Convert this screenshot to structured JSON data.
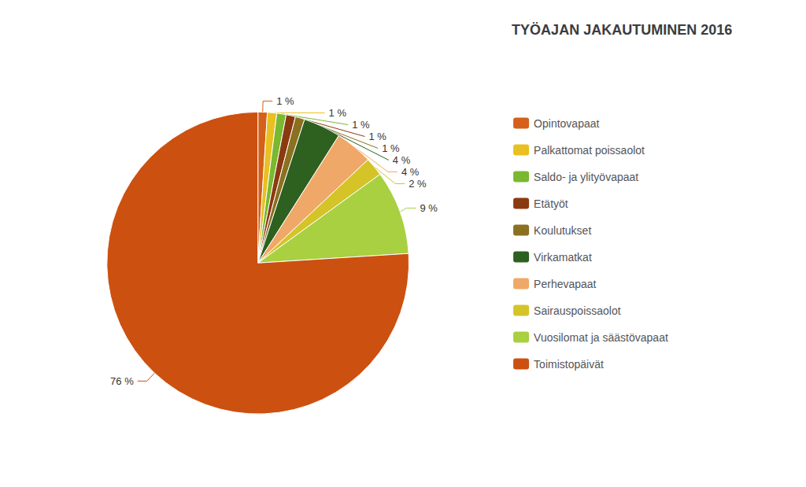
{
  "chart_data": {
    "type": "pie",
    "title": "TYÖAJAN JAKAUTUMINEN 2016",
    "categories": [
      "Opintovapaat",
      "Palkattomat poissaolot",
      "Saldo- ja ylityövapaat",
      "Etätyöt",
      "Koulutukset",
      "Virkamatkat",
      "Perhevapaat",
      "Sairauspoissaolot",
      "Vuosilomat ja säästövapaat",
      "Toimistopäivät"
    ],
    "values": [
      1,
      1,
      1,
      1,
      1,
      4,
      4,
      2,
      9,
      76
    ],
    "value_labels": [
      "1 %",
      "1 %",
      "1 %",
      "1 %",
      "1 %",
      "4 %",
      "4 %",
      "2 %",
      "9 %",
      "76 %"
    ],
    "colors": [
      "#D4601A",
      "#E8C020",
      "#7AB830",
      "#8B3A10",
      "#8B7020",
      "#2E6020",
      "#F0A868",
      "#D4C428",
      "#A8D040",
      "#CC5010"
    ],
    "data_labels": true,
    "legend": "right"
  }
}
